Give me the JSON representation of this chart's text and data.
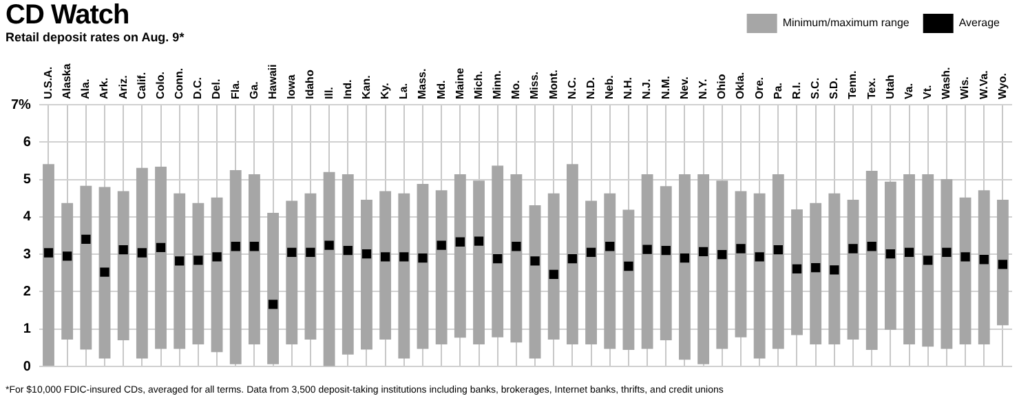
{
  "chart_data": {
    "type": "bar",
    "title": "CD Watch",
    "subtitle": "Retail deposit rates on Aug. 9*",
    "categories": [
      "U.S.A.",
      "Alaska",
      "Ala.",
      "Ark.",
      "Ariz.",
      "Calif.",
      "Colo.",
      "Conn.",
      "D.C.",
      "Del.",
      "Fla.",
      "Ga.",
      "Hawaii",
      "Iowa",
      "Idaho",
      "Ill.",
      "Ind.",
      "Kan.",
      "Ky.",
      "La.",
      "Mass.",
      "Md.",
      "Maine",
      "Mich.",
      "Minn.",
      "Mo.",
      "Miss.",
      "Mont.",
      "N.C.",
      "N.D.",
      "Neb.",
      "N.H.",
      "N.J.",
      "N.M.",
      "Nev.",
      "N.Y.",
      "Ohio",
      "Okla.",
      "Ore.",
      "Pa.",
      "R.I.",
      "S.C.",
      "S.D.",
      "Tenn.",
      "Tex.",
      "Utah",
      "Va.",
      "Vt.",
      "Wash.",
      "Wis.",
      "W.Va.",
      "Wyo."
    ],
    "series": [
      {
        "name": "Minimum/maximum range",
        "type": "bar",
        "color": "#a6a6a6",
        "base": [
          0,
          0.72,
          0.45,
          0.21,
          0.7,
          0.21,
          0.47,
          0.47,
          0.59,
          0.38,
          0.06,
          0.59,
          0.06,
          0.59,
          0.72,
          0.01,
          0.32,
          0.45,
          0.72,
          0.21,
          0.47,
          0.59,
          0.77,
          0.59,
          0.78,
          0.64,
          0.21,
          0.72,
          0.59,
          0.59,
          0.47,
          0.44,
          0.47,
          0.7,
          0.18,
          0.06,
          0.47,
          0.78,
          0.21,
          0.47,
          0.84,
          0.59,
          0.59,
          0.72,
          0.44,
          0.98,
          0.59,
          0.53,
          0.47,
          0.59,
          0.59,
          1.1
        ],
        "values": [
          5.41,
          3.65,
          4.38,
          4.59,
          3.99,
          5.1,
          4.87,
          4.16,
          3.78,
          4.14,
          5.19,
          4.55,
          4.05,
          3.84,
          3.91,
          5.19,
          4.82,
          4.01,
          3.97,
          4.42,
          4.41,
          4.12,
          4.37,
          4.38,
          4.59,
          4.5,
          4.1,
          3.91,
          4.82,
          3.84,
          4.16,
          3.75,
          4.67,
          4.12,
          4.96,
          5.08,
          4.5,
          3.91,
          4.42,
          4.67,
          3.36,
          3.78,
          4.04,
          3.74,
          4.79,
          3.96,
          4.55,
          4.61,
          4.54,
          3.93,
          4.12,
          3.36
        ]
      },
      {
        "name": "Average",
        "type": "scatter",
        "color": "#000000",
        "marker": "square",
        "values": [
          3.04,
          2.95,
          3.4,
          2.52,
          3.12,
          3.04,
          3.18,
          2.82,
          2.84,
          2.93,
          3.21,
          3.21,
          1.66,
          3.05,
          3.05,
          3.24,
          3.1,
          3.01,
          2.93,
          2.93,
          2.9,
          3.24,
          3.33,
          3.35,
          2.88,
          3.21,
          2.82,
          2.46,
          2.88,
          3.05,
          3.21,
          2.68,
          3.13,
          3.1,
          2.9,
          3.07,
          2.99,
          3.15,
          2.93,
          3.12,
          2.61,
          2.64,
          2.58,
          3.15,
          3.21,
          3.01,
          3.05,
          2.84,
          3.05,
          2.93,
          2.86,
          2.73
        ]
      }
    ],
    "ylim": [
      0,
      7
    ],
    "yticks": [
      0,
      1,
      2,
      3,
      4,
      5,
      6,
      {
        "value": 7,
        "label": "7%"
      }
    ],
    "grid": true,
    "legend": "top right",
    "annotations": [
      "*For $10,000 FDIC-insured CDs, averaged for all terms. Data from 3,500 deposit-taking institutions including banks, brokerages, Internet banks, thrifts, and credit unions"
    ]
  }
}
